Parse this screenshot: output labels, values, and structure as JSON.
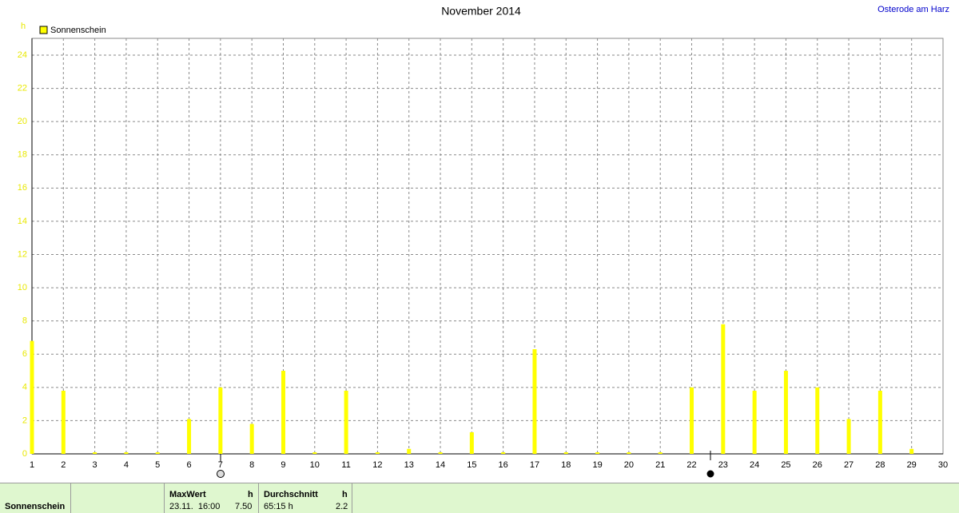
{
  "chart_data": {
    "type": "bar",
    "title": "November 2014",
    "location": "Osterode am Harz",
    "y_label": "h",
    "x": [
      1,
      2,
      3,
      4,
      5,
      6,
      7,
      8,
      9,
      10,
      11,
      12,
      13,
      14,
      15,
      16,
      17,
      18,
      19,
      20,
      21,
      22,
      23,
      24,
      25,
      26,
      27,
      28,
      29
    ],
    "series": [
      {
        "name": "Sonnenschein",
        "color": "#ffff00",
        "values": [
          6.8,
          3.8,
          0,
          0,
          0,
          2.1,
          4.0,
          1.8,
          5.0,
          0,
          3.8,
          0,
          0.3,
          0,
          1.3,
          0,
          6.3,
          0,
          0,
          0,
          0,
          4.0,
          7.8,
          3.8,
          5.0,
          4.0,
          2.1,
          3.8,
          0.3
        ]
      }
    ],
    "xlim": [
      1,
      30
    ],
    "xticks": [
      1,
      2,
      3,
      4,
      5,
      6,
      7,
      8,
      9,
      10,
      11,
      12,
      13,
      14,
      15,
      16,
      17,
      18,
      19,
      20,
      21,
      22,
      23,
      24,
      25,
      26,
      27,
      28,
      29,
      30
    ],
    "ylim": [
      0,
      24
    ],
    "yticks": [
      0,
      2,
      4,
      6,
      8,
      10,
      12,
      14,
      16,
      18,
      20,
      22,
      24
    ],
    "grid": true,
    "legend": "top-left"
  },
  "footer": {
    "row_label": "Sonnenschein",
    "max": {
      "header": "MaxWert",
      "unit": "h",
      "time": "23.11.  16:00",
      "value": "7.50"
    },
    "avg": {
      "header": "Durchschnitt",
      "unit": "h",
      "total": "65:15 h",
      "value": "2.2"
    }
  }
}
